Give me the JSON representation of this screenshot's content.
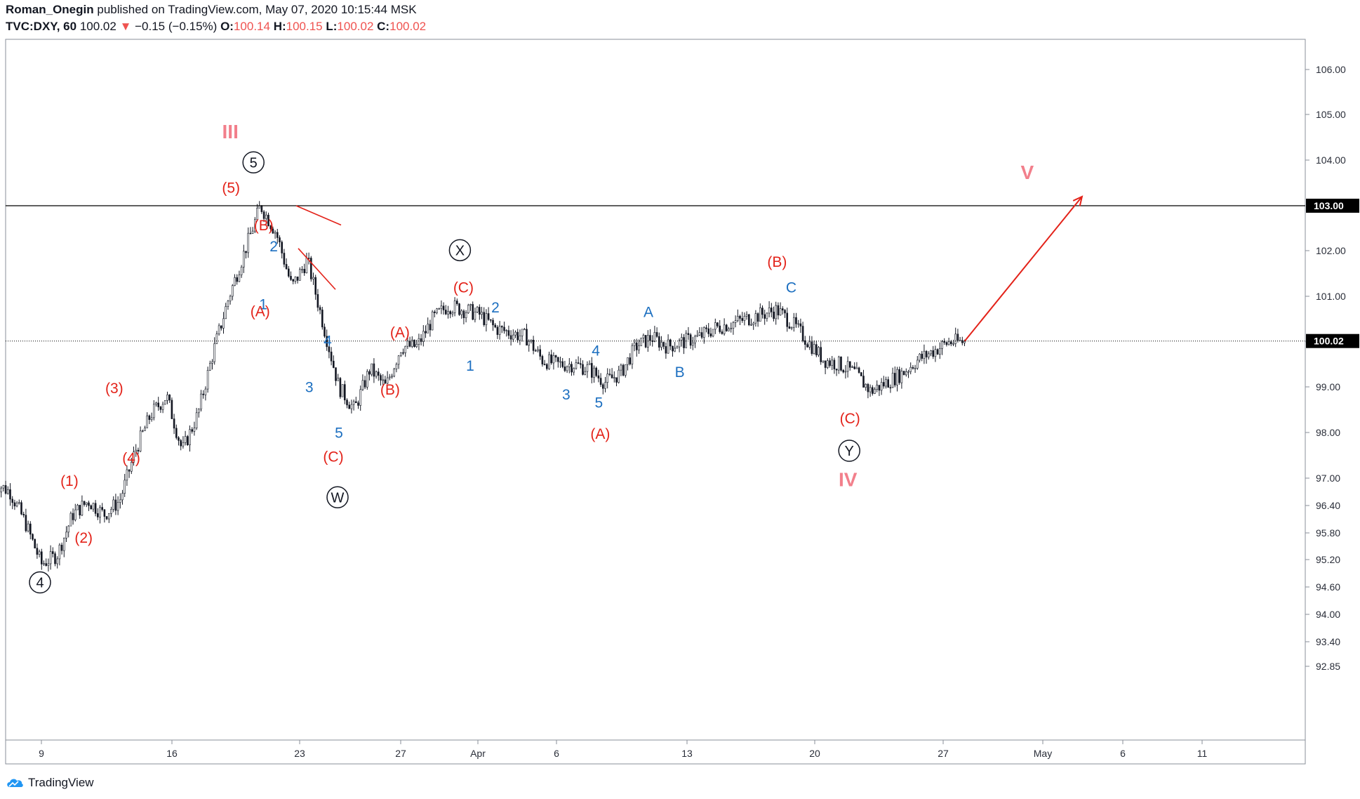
{
  "header": {
    "author": "Roman_Onegin",
    "published_text": "published on TradingView.com, May 07, 2020 10:15:44 MSK",
    "symbol": "TVC:DXY, 60",
    "last": "100.02",
    "change": "−0.15 (−0.15%)",
    "o_label": "O:",
    "o_value": "100.14",
    "h_label": "H:",
    "h_value": "100.15",
    "l_label": "L:",
    "l_value": "100.02",
    "c_label": "C:",
    "c_value": "100.02"
  },
  "footer": {
    "brand": "TradingView"
  },
  "colors": {
    "wave_red": "#e32219",
    "wave_blue": "#1c6fc0",
    "wave_pink": "#f27f8b",
    "wave_black": "#131722",
    "candles": "#131722",
    "grid": "#000000",
    "axis_text": "#2a2e39"
  },
  "chart_data": {
    "type": "candlestick",
    "y_ticks": [
      "106.00",
      "105.00",
      "104.00",
      "103.00",
      "102.00",
      "101.00",
      "100.00",
      "99.00",
      "98.00",
      "97.00",
      "96.40",
      "95.80",
      "95.20",
      "94.60",
      "94.00",
      "93.40",
      "92.85"
    ],
    "y_marked": [
      "103.00",
      "100.02"
    ],
    "x_ticks": [
      "9",
      "16",
      "23",
      "27",
      "Apr",
      "6",
      "13",
      "20",
      "27",
      "May",
      "6",
      "11"
    ],
    "horizontal_line_level": 103.0,
    "current_price_level": 100.02,
    "price_path": [
      [
        "Mar 6",
        96.9
      ],
      [
        "Mar 7",
        96.7
      ],
      [
        "Mar 8",
        96.0
      ],
      [
        "Mar 9",
        95.1
      ],
      [
        "Mar 10",
        95.3
      ],
      [
        "Mar 11",
        96.2
      ],
      [
        "Mar 12",
        96.5
      ],
      [
        "Mar 13",
        96.2
      ],
      [
        "Mar 14",
        96.5
      ],
      [
        "Mar 15",
        97.6
      ],
      [
        "Mar 16",
        98.4
      ],
      [
        "Mar 17",
        98.8
      ],
      [
        "Mar 18",
        97.6
      ],
      [
        "Mar 19",
        98.4
      ],
      [
        "Mar 20",
        99.8
      ],
      [
        "Mar 21",
        101.0
      ],
      [
        "Mar 22",
        102.0
      ],
      [
        "Mar 23",
        103.0
      ],
      [
        "Mar 24",
        102.4
      ],
      [
        "Mar 25",
        101.2
      ],
      [
        "Mar 26",
        101.8
      ],
      [
        "Mar 27",
        100.4
      ],
      [
        "Mar 28",
        99.0
      ],
      [
        "Mar 29",
        98.5
      ],
      [
        "Mar 30",
        99.4
      ],
      [
        "Mar 31",
        99.0
      ],
      [
        "Apr 1",
        99.9
      ],
      [
        "Apr 2",
        99.9
      ],
      [
        "Apr 3",
        100.5
      ],
      [
        "Apr 4",
        100.8
      ],
      [
        "Apr 5",
        100.7
      ],
      [
        "Apr 6",
        100.6
      ],
      [
        "Apr 7",
        100.3
      ],
      [
        "Apr 8",
        100.2
      ],
      [
        "Apr 9",
        100.1
      ],
      [
        "Apr 10",
        99.6
      ],
      [
        "Apr 11",
        99.5
      ],
      [
        "Apr 12",
        99.5
      ],
      [
        "Apr 13",
        99.4
      ],
      [
        "Apr 14",
        99.1
      ],
      [
        "Apr 15",
        99.3
      ],
      [
        "Apr 16",
        99.9
      ],
      [
        "Apr 17",
        100.1
      ],
      [
        "Apr 18",
        99.9
      ],
      [
        "Apr 19",
        100.0
      ],
      [
        "Apr 20",
        100.1
      ],
      [
        "Apr 21",
        100.3
      ],
      [
        "Apr 22",
        100.4
      ],
      [
        "Apr 23",
        100.5
      ],
      [
        "Apr 24",
        100.6
      ],
      [
        "Apr 25",
        100.7
      ],
      [
        "Apr 26",
        100.4
      ],
      [
        "Apr 27",
        100.0
      ],
      [
        "Apr 28",
        99.6
      ],
      [
        "Apr 29",
        99.5
      ],
      [
        "Apr 30",
        99.3
      ],
      [
        "May 1",
        98.9
      ],
      [
        "May 2",
        99.1
      ],
      [
        "May 3",
        99.3
      ],
      [
        "May 4",
        99.6
      ],
      [
        "May 5",
        99.8
      ],
      [
        "May 6",
        100.0
      ],
      [
        "May 7",
        100.0
      ]
    ],
    "wave_labels": [
      {
        "text": "III",
        "color": "pink",
        "x": "Mar 23",
        "price": 104.63
      },
      {
        "text": "5",
        "color": "black",
        "circled": true,
        "x": "Mar 23",
        "price": 103.95
      },
      {
        "text": "(5)",
        "color": "red",
        "x": "Mar 23",
        "price": 103.4
      },
      {
        "text": "(B)",
        "color": "red",
        "x": "Mar 25",
        "price": 102.57
      },
      {
        "text": "2",
        "color": "blue",
        "x": "Mar 26",
        "price": 102.1
      },
      {
        "text": "1",
        "color": "blue",
        "x": "Mar 26",
        "price": 100.83
      },
      {
        "text": "(A)",
        "color": "red",
        "x": "Mar 25",
        "price": 100.68
      },
      {
        "text": "4",
        "color": "blue",
        "x": "Mar 29",
        "price": 100.03
      },
      {
        "text": "3",
        "color": "blue",
        "x": "Mar 28",
        "price": 99.0
      },
      {
        "text": "5",
        "color": "blue",
        "x": "Mar 29",
        "price": 98.0
      },
      {
        "text": "(C)",
        "color": "red",
        "x": "Mar 29",
        "price": 97.48
      },
      {
        "text": "W",
        "color": "black",
        "circled": true,
        "x": "Mar 29",
        "price": 96.58
      },
      {
        "text": "(A)",
        "color": "red",
        "x": "Apr 1",
        "price": 100.22
      },
      {
        "text": "(B)",
        "color": "red",
        "x": "Apr 1",
        "price": 98.95
      },
      {
        "text": "X",
        "color": "black",
        "circled": true,
        "x": "Apr 6",
        "price": 102.01
      },
      {
        "text": "(C)",
        "color": "red",
        "x": "Apr 6",
        "price": 101.2
      },
      {
        "text": "2",
        "color": "blue",
        "x": "Apr 8",
        "price": 100.76
      },
      {
        "text": "1",
        "color": "blue",
        "x": "Apr 8",
        "price": 99.48
      },
      {
        "text": "4",
        "color": "blue",
        "x": "Apr 15",
        "price": 99.81
      },
      {
        "text": "3",
        "color": "blue",
        "x": "Apr 14",
        "price": 98.84
      },
      {
        "text": "5",
        "color": "blue",
        "x": "Apr 16",
        "price": 98.66
      },
      {
        "text": "(A)",
        "color": "red",
        "x": "Apr 16",
        "price": 97.98
      },
      {
        "text": "A",
        "color": "blue",
        "x": "Apr 18",
        "price": 100.66
      },
      {
        "text": "B",
        "color": "blue",
        "x": "Apr 20",
        "price": 99.34
      },
      {
        "text": "(B)",
        "color": "red",
        "x": "Apr 26",
        "price": 101.76
      },
      {
        "text": "C",
        "color": "blue",
        "x": "Apr 26",
        "price": 101.2
      },
      {
        "text": "(C)",
        "color": "red",
        "x": "May 2",
        "price": 98.32
      },
      {
        "text": "Y",
        "color": "black",
        "circled": true,
        "x": "May 2",
        "price": 97.6
      },
      {
        "text": "IV",
        "color": "pink",
        "x": "May 2",
        "price": 96.98
      },
      {
        "text": "4",
        "color": "black",
        "circled": true,
        "x": "Mar 9",
        "price": 94.7
      },
      {
        "text": "(1)",
        "color": "red",
        "x": "Mar 12",
        "price": 96.95
      },
      {
        "text": "(2)",
        "color": "red",
        "x": "Mar 13",
        "price": 95.7
      },
      {
        "text": "(3)",
        "color": "red",
        "x": "Mar 15",
        "price": 98.98
      },
      {
        "text": "(4)",
        "color": "red",
        "x": "Mar 16",
        "price": 97.45
      },
      {
        "text": "V",
        "color": "pink",
        "x": "May 11",
        "price": 103.74
      }
    ],
    "annotations": [
      {
        "type": "triangle",
        "description": "contracting triangle after (5) top",
        "color": "red"
      },
      {
        "type": "arrow",
        "from": [
          "May 7",
          100.02
        ],
        "to": [
          "May 11",
          103.2
        ],
        "color": "red"
      }
    ]
  }
}
